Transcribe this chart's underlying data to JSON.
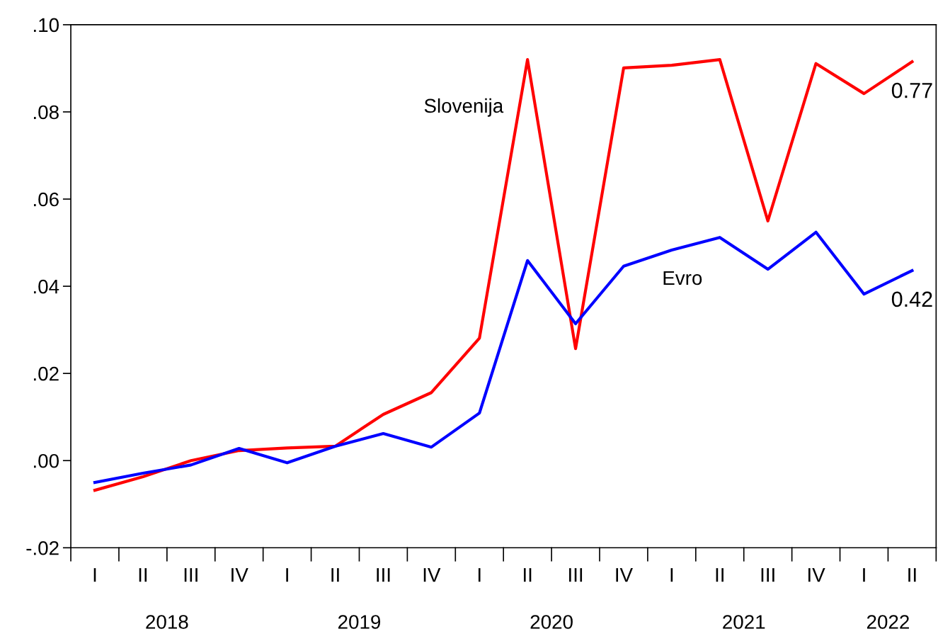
{
  "chart_data": {
    "type": "line",
    "categories": [
      "I",
      "II",
      "III",
      "IV",
      "I",
      "II",
      "III",
      "IV",
      "I",
      "II",
      "III",
      "IV",
      "I",
      "II",
      "III",
      "IV",
      "I",
      "II"
    ],
    "series": [
      {
        "name": "Slovenija",
        "color": "#ff0000",
        "values": [
          -0.0068,
          -0.0037,
          0.0,
          0.0023,
          0.0029,
          0.0033,
          0.0106,
          0.0156,
          0.0281,
          0.092,
          0.0257,
          0.0901,
          0.0907,
          0.092,
          0.055,
          0.0911,
          0.0842,
          0.0915
        ]
      },
      {
        "name": "Evro",
        "color": "#0000ff",
        "values": [
          -0.005,
          -0.0029,
          -0.001,
          0.0028,
          -0.0005,
          0.0033,
          0.0062,
          0.0031,
          0.0109,
          0.0459,
          0.0314,
          0.0446,
          0.0483,
          0.0512,
          0.0439,
          0.0524,
          0.0382,
          0.0436
        ]
      }
    ],
    "ylim": [
      -0.02,
      0.1
    ],
    "yticks": [
      {
        "value": -0.02,
        "label": "-.02"
      },
      {
        "value": 0.0,
        "label": ".00"
      },
      {
        "value": 0.02,
        "label": ".02"
      },
      {
        "value": 0.04,
        "label": ".04"
      },
      {
        "value": 0.06,
        "label": ".06"
      },
      {
        "value": 0.08,
        "label": ".08"
      },
      {
        "value": 0.1,
        "label": ".10"
      }
    ],
    "annotations": [
      "0.77",
      "0.42",
      "2018",
      "2019",
      "2020",
      "2021",
      "2022"
    ],
    "grid": false,
    "legend": false,
    "marker": "none",
    "line_style": "solid"
  }
}
